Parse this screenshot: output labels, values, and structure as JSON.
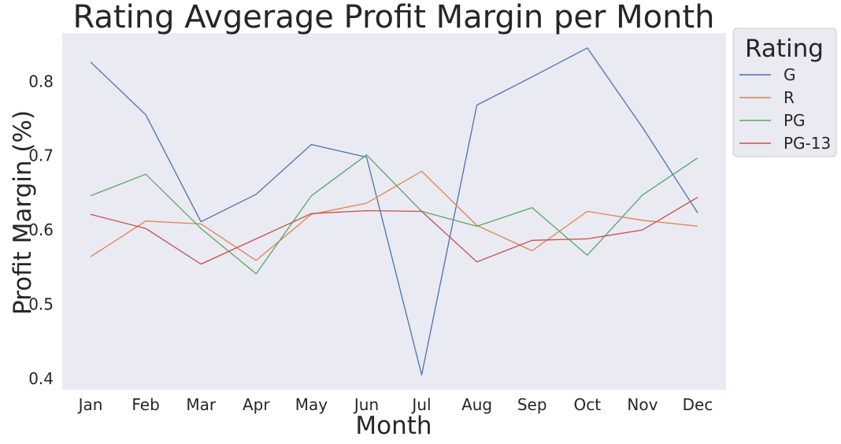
{
  "chart_data": {
    "type": "line",
    "title": "Rating Avgerage Profit Margin per Month",
    "xlabel": "Month",
    "ylabel": "Profit Margin (%)",
    "categories": [
      "Jan",
      "Feb",
      "Mar",
      "Apr",
      "May",
      "Jun",
      "Jul",
      "Aug",
      "Sep",
      "Oct",
      "Nov",
      "Dec"
    ],
    "ylim": [
      0.385,
      0.865
    ],
    "yticks": [
      0.4,
      0.5,
      0.6,
      0.7,
      0.8
    ],
    "ytick_labels": [
      "0.4",
      "0.5",
      "0.6",
      "0.7",
      "0.8"
    ],
    "grid": false,
    "legend": {
      "title": "Rating",
      "placement": "outside-right"
    },
    "series": [
      {
        "name": "G",
        "color": "#4c72b0",
        "values": [
          0.826,
          0.755,
          0.611,
          0.648,
          0.715,
          0.698,
          0.405,
          0.768,
          0.806,
          0.845,
          0.738,
          0.623
        ]
      },
      {
        "name": "R",
        "color": "#dd8452",
        "values": [
          0.564,
          0.612,
          0.608,
          0.559,
          0.621,
          0.636,
          0.679,
          0.606,
          0.572,
          0.625,
          0.613,
          0.605
        ]
      },
      {
        "name": "PG",
        "color": "#55a868",
        "values": [
          0.646,
          0.675,
          0.602,
          0.541,
          0.646,
          0.701,
          0.625,
          0.605,
          0.63,
          0.566,
          0.647,
          0.697
        ]
      },
      {
        "name": "PG-13",
        "color": "#c44e52",
        "values": [
          0.621,
          0.602,
          0.554,
          0.588,
          0.622,
          0.626,
          0.625,
          0.557,
          0.586,
          0.588,
          0.6,
          0.644
        ]
      }
    ]
  }
}
